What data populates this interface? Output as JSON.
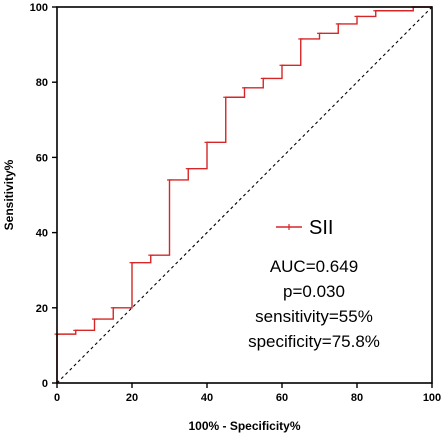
{
  "chart_data": {
    "type": "line",
    "title": "",
    "xlabel": "100% - Specificity%",
    "ylabel": "Sensitivity%",
    "xlim": [
      0,
      100
    ],
    "ylim": [
      0,
      100
    ],
    "x_ticks": [
      "0",
      "20",
      "40",
      "60",
      "80",
      "100"
    ],
    "y_ticks": [
      "0",
      "20",
      "40",
      "60",
      "80",
      "100"
    ],
    "grid": false,
    "legend_position": "center-right",
    "series": [
      {
        "name": "SII",
        "color": "#d62728",
        "step": true,
        "x": [
          0,
          0,
          5,
          5,
          10,
          10,
          15,
          15,
          20,
          20,
          25,
          25,
          30,
          30,
          35,
          35,
          40,
          40,
          45,
          45,
          50,
          50,
          55,
          55,
          60,
          60,
          65,
          65,
          70,
          70,
          75,
          75,
          80,
          80,
          85,
          85,
          95,
          95,
          100
        ],
        "y": [
          0,
          13,
          13,
          14,
          14,
          17,
          17,
          20,
          20,
          32,
          32,
          34,
          34,
          54,
          54,
          57,
          57,
          64,
          64,
          76,
          76,
          78.5,
          78.5,
          81,
          81,
          84.5,
          84.5,
          91.5,
          91.5,
          93,
          93,
          95.5,
          95.5,
          97.5,
          97.5,
          99,
          99,
          100,
          100
        ]
      }
    ],
    "reference_line": {
      "style": "dashed",
      "color": "#000000",
      "x": [
        0,
        100
      ],
      "y": [
        0,
        100
      ]
    },
    "annotations": [
      "AUC=0.649",
      "p=0.030",
      "sensitivity=55%",
      "specificity=75.8%"
    ]
  }
}
